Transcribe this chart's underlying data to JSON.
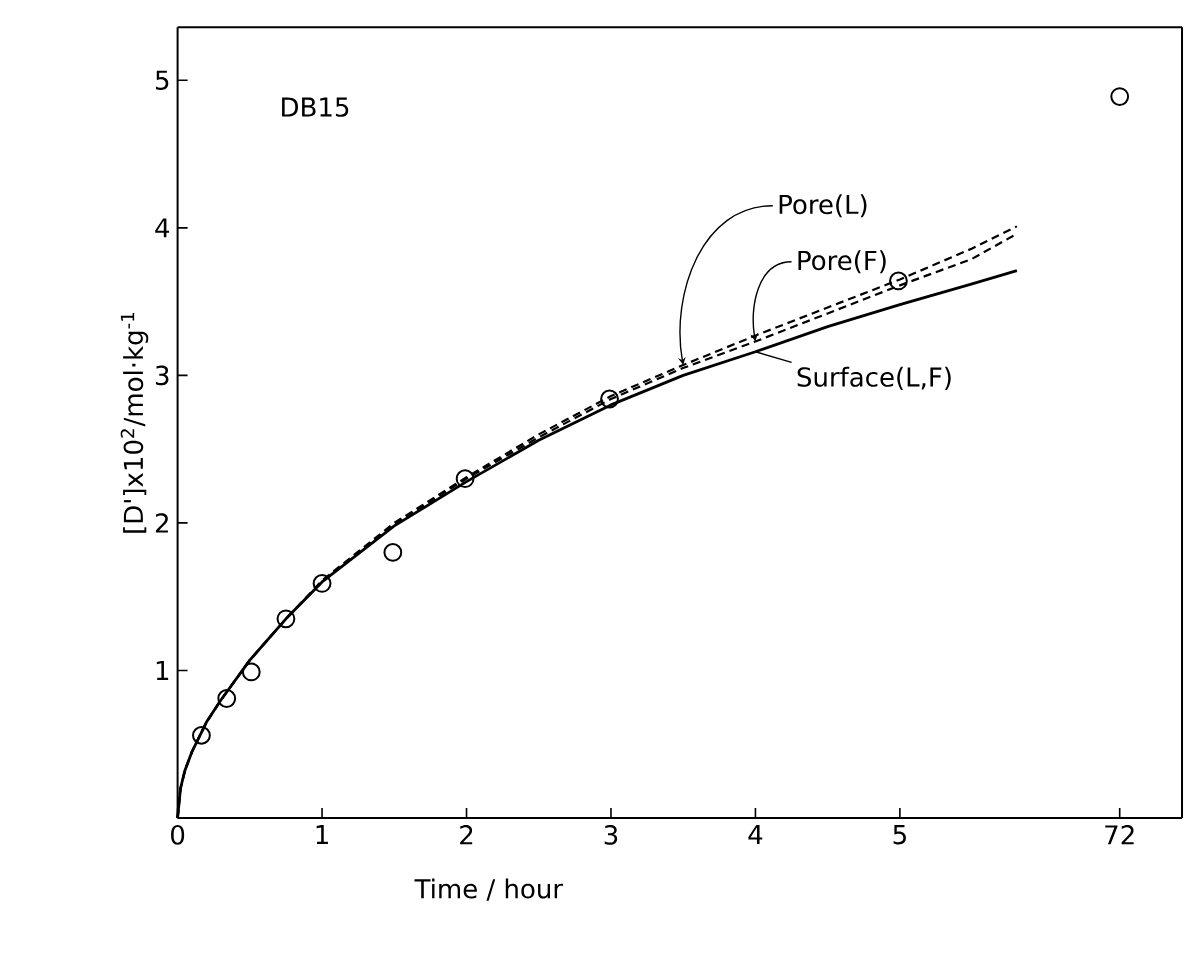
{
  "chart_data": [
    {
      "type": "line",
      "annotations": [
        "DB15"
      ],
      "xlabel": "Time / hour",
      "ylabel": "[D']x10$^{2}$/mol·kg$^{-1}$",
      "xlim": [
        0,
        5.97
      ],
      "ylim": [
        0,
        5.36
      ],
      "xticks": [
        0,
        1,
        2,
        3,
        4,
        5
      ],
      "yticks": [
        {
          "value": 0,
          "label": null
        },
        1,
        2,
        3,
        4,
        5
      ],
      "series": [
        {
          "type": "scatter",
          "marker": "circle",
          "color": "#000000",
          "x": [
            0.165,
            0.34,
            0.51,
            0.75,
            1.0,
            1.49,
            1.99,
            2.99,
            4.99
          ],
          "values": [
            0.56,
            0.81,
            0.99,
            1.35,
            1.59,
            1.8,
            2.3,
            2.84,
            3.64
          ]
        },
        {
          "name": "Surface(L,F)",
          "line_style": "solid",
          "color": "#000000",
          "x": [
            0,
            0.02,
            0.05,
            0.1,
            0.2,
            0.3,
            0.5,
            0.75,
            1,
            1.5,
            2,
            2.5,
            3,
            3.5,
            4,
            4.5,
            5,
            5.5,
            5.81
          ],
          "values": [
            0,
            0.2,
            0.32,
            0.45,
            0.65,
            0.8,
            1.07,
            1.35,
            1.6,
            1.98,
            2.28,
            2.56,
            2.8,
            3.0,
            3.16,
            3.33,
            3.48,
            3.62,
            3.71
          ]
        },
        {
          "name": "Pore(L)",
          "line_style": "dashed",
          "color": "#000000",
          "x": [
            0,
            0.02,
            0.05,
            0.1,
            0.2,
            0.3,
            0.5,
            0.75,
            1,
            1.5,
            2,
            2.5,
            3,
            3.5,
            4,
            4.5,
            5,
            5.5,
            5.81
          ],
          "values": [
            0,
            0.2,
            0.32,
            0.45,
            0.65,
            0.8,
            1.07,
            1.35,
            1.61,
            2.0,
            2.31,
            2.6,
            2.86,
            3.07,
            3.27,
            3.46,
            3.65,
            3.86,
            4.01
          ]
        },
        {
          "name": "Pore(F)",
          "line_style": "dashed",
          "color": "#000000",
          "x": [
            0,
            0.02,
            0.05,
            0.1,
            0.2,
            0.3,
            0.5,
            0.75,
            1,
            1.5,
            2,
            2.5,
            3,
            3.5,
            4,
            4.5,
            5,
            5.5,
            5.81
          ],
          "values": [
            0,
            0.2,
            0.32,
            0.45,
            0.65,
            0.8,
            1.07,
            1.35,
            1.6,
            1.99,
            2.3,
            2.58,
            2.84,
            3.05,
            3.23,
            3.42,
            3.61,
            3.79,
            3.96
          ]
        }
      ]
    },
    {
      "type": "scatter",
      "categories": [
        "72"
      ],
      "ylim": [
        0,
        5.36
      ],
      "tick_labels": "x",
      "series": [
        {
          "marker": "circle",
          "color": "#000000",
          "x": [
            "72"
          ],
          "values": [
            4.89
          ]
        }
      ]
    }
  ]
}
